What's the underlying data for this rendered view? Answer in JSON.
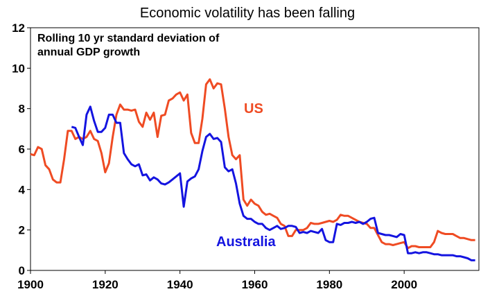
{
  "chart_data": {
    "type": "line",
    "title": "Economic volatility has been falling",
    "subtitle_lines": [
      "Rolling 10 yr standard deviation of",
      "annual GDP growth"
    ],
    "xlim": [
      1900,
      2020
    ],
    "ylim": [
      0,
      12
    ],
    "x_ticks": [
      1900,
      1920,
      1940,
      1960,
      1980,
      2000
    ],
    "y_ticks": [
      0,
      2,
      4,
      6,
      8,
      10,
      12
    ],
    "grid": false,
    "series": [
      {
        "name": "US",
        "color": "#ef4b23",
        "points": [
          [
            1900,
            5.75
          ],
          [
            1901,
            5.7
          ],
          [
            1902,
            6.1
          ],
          [
            1903,
            6.0
          ],
          [
            1904,
            5.2
          ],
          [
            1905,
            5.0
          ],
          [
            1906,
            4.5
          ],
          [
            1907,
            4.35
          ],
          [
            1908,
            4.35
          ],
          [
            1909,
            5.5
          ],
          [
            1910,
            6.9
          ],
          [
            1911,
            6.9
          ],
          [
            1912,
            6.5
          ],
          [
            1913,
            6.6
          ],
          [
            1914,
            6.5
          ],
          [
            1915,
            6.6
          ],
          [
            1916,
            6.9
          ],
          [
            1917,
            6.5
          ],
          [
            1918,
            6.4
          ],
          [
            1919,
            5.8
          ],
          [
            1920,
            4.85
          ],
          [
            1921,
            5.3
          ],
          [
            1922,
            6.6
          ],
          [
            1923,
            7.7
          ],
          [
            1924,
            8.2
          ],
          [
            1925,
            7.95
          ],
          [
            1926,
            7.95
          ],
          [
            1927,
            7.9
          ],
          [
            1928,
            7.95
          ],
          [
            1929,
            7.35
          ],
          [
            1930,
            7.1
          ],
          [
            1931,
            7.8
          ],
          [
            1932,
            7.45
          ],
          [
            1933,
            7.8
          ],
          [
            1934,
            6.6
          ],
          [
            1935,
            7.65
          ],
          [
            1936,
            7.7
          ],
          [
            1937,
            8.4
          ],
          [
            1938,
            8.5
          ],
          [
            1939,
            8.7
          ],
          [
            1940,
            8.8
          ],
          [
            1941,
            8.4
          ],
          [
            1942,
            8.7
          ],
          [
            1943,
            6.8
          ],
          [
            1944,
            6.3
          ],
          [
            1945,
            6.3
          ],
          [
            1946,
            7.5
          ],
          [
            1947,
            9.2
          ],
          [
            1948,
            9.45
          ],
          [
            1949,
            9.0
          ],
          [
            1950,
            9.25
          ],
          [
            1951,
            9.2
          ],
          [
            1952,
            8.0
          ],
          [
            1953,
            6.6
          ],
          [
            1954,
            5.7
          ],
          [
            1955,
            5.5
          ],
          [
            1956,
            5.7
          ],
          [
            1957,
            3.5
          ],
          [
            1958,
            3.2
          ],
          [
            1959,
            3.5
          ],
          [
            1960,
            3.3
          ],
          [
            1961,
            3.2
          ],
          [
            1962,
            2.9
          ],
          [
            1963,
            2.75
          ],
          [
            1964,
            2.8
          ],
          [
            1965,
            2.7
          ],
          [
            1966,
            2.6
          ],
          [
            1967,
            2.3
          ],
          [
            1968,
            2.2
          ],
          [
            1969,
            1.7
          ],
          [
            1970,
            1.7
          ],
          [
            1971,
            2.0
          ],
          [
            1972,
            2.0
          ],
          [
            1973,
            2.0
          ],
          [
            1974,
            2.1
          ],
          [
            1975,
            2.35
          ],
          [
            1976,
            2.3
          ],
          [
            1977,
            2.3
          ],
          [
            1978,
            2.35
          ],
          [
            1979,
            2.4
          ],
          [
            1980,
            2.45
          ],
          [
            1981,
            2.4
          ],
          [
            1982,
            2.5
          ],
          [
            1983,
            2.75
          ],
          [
            1984,
            2.7
          ],
          [
            1985,
            2.7
          ],
          [
            1986,
            2.6
          ],
          [
            1987,
            2.5
          ],
          [
            1988,
            2.4
          ],
          [
            1989,
            2.35
          ],
          [
            1990,
            2.3
          ],
          [
            1991,
            2.1
          ],
          [
            1992,
            2.1
          ],
          [
            1993,
            1.75
          ],
          [
            1994,
            1.4
          ],
          [
            1995,
            1.3
          ],
          [
            1996,
            1.3
          ],
          [
            1997,
            1.25
          ],
          [
            1998,
            1.3
          ],
          [
            1999,
            1.35
          ],
          [
            2000,
            1.4
          ],
          [
            2001,
            1.1
          ],
          [
            2002,
            1.2
          ],
          [
            2003,
            1.2
          ],
          [
            2004,
            1.15
          ],
          [
            2005,
            1.15
          ],
          [
            2006,
            1.15
          ],
          [
            2007,
            1.15
          ],
          [
            2008,
            1.4
          ],
          [
            2009,
            1.95
          ],
          [
            2010,
            1.85
          ],
          [
            2011,
            1.8
          ],
          [
            2012,
            1.8
          ],
          [
            2013,
            1.8
          ],
          [
            2014,
            1.7
          ],
          [
            2015,
            1.6
          ],
          [
            2016,
            1.6
          ],
          [
            2017,
            1.55
          ],
          [
            2018,
            1.5
          ],
          [
            2019,
            1.5
          ]
        ]
      },
      {
        "name": "Australia",
        "color": "#1414e0",
        "points": [
          [
            1911,
            7.1
          ],
          [
            1912,
            7.05
          ],
          [
            1913,
            6.6
          ],
          [
            1914,
            6.2
          ],
          [
            1915,
            7.7
          ],
          [
            1916,
            8.1
          ],
          [
            1917,
            7.4
          ],
          [
            1918,
            6.85
          ],
          [
            1919,
            6.85
          ],
          [
            1920,
            7.05
          ],
          [
            1921,
            7.7
          ],
          [
            1922,
            7.7
          ],
          [
            1923,
            7.3
          ],
          [
            1924,
            7.3
          ],
          [
            1925,
            5.8
          ],
          [
            1926,
            5.5
          ],
          [
            1927,
            5.25
          ],
          [
            1928,
            5.15
          ],
          [
            1929,
            5.25
          ],
          [
            1930,
            4.7
          ],
          [
            1931,
            4.75
          ],
          [
            1932,
            4.45
          ],
          [
            1933,
            4.6
          ],
          [
            1934,
            4.5
          ],
          [
            1935,
            4.3
          ],
          [
            1936,
            4.25
          ],
          [
            1937,
            4.35
          ],
          [
            1938,
            4.5
          ],
          [
            1939,
            4.65
          ],
          [
            1940,
            4.8
          ],
          [
            1941,
            3.15
          ],
          [
            1942,
            4.4
          ],
          [
            1943,
            4.55
          ],
          [
            1944,
            4.65
          ],
          [
            1945,
            5.0
          ],
          [
            1946,
            5.9
          ],
          [
            1947,
            6.6
          ],
          [
            1948,
            6.75
          ],
          [
            1949,
            6.5
          ],
          [
            1950,
            6.55
          ],
          [
            1951,
            6.35
          ],
          [
            1952,
            5.1
          ],
          [
            1953,
            4.9
          ],
          [
            1954,
            5.0
          ],
          [
            1955,
            4.3
          ],
          [
            1956,
            3.3
          ],
          [
            1957,
            2.7
          ],
          [
            1958,
            2.55
          ],
          [
            1959,
            2.55
          ],
          [
            1960,
            2.4
          ],
          [
            1961,
            2.3
          ],
          [
            1962,
            2.3
          ],
          [
            1963,
            2.1
          ],
          [
            1964,
            2.0
          ],
          [
            1965,
            2.1
          ],
          [
            1966,
            2.2
          ],
          [
            1967,
            2.05
          ],
          [
            1968,
            2.1
          ],
          [
            1969,
            2.2
          ],
          [
            1970,
            2.2
          ],
          [
            1971,
            2.15
          ],
          [
            1972,
            1.85
          ],
          [
            1973,
            1.9
          ],
          [
            1974,
            1.85
          ],
          [
            1975,
            1.95
          ],
          [
            1976,
            1.9
          ],
          [
            1977,
            1.85
          ],
          [
            1978,
            2.05
          ],
          [
            1979,
            1.5
          ],
          [
            1980,
            1.4
          ],
          [
            1981,
            1.4
          ],
          [
            1982,
            2.3
          ],
          [
            1983,
            2.25
          ],
          [
            1984,
            2.35
          ],
          [
            1985,
            2.35
          ],
          [
            1986,
            2.4
          ],
          [
            1987,
            2.35
          ],
          [
            1988,
            2.4
          ],
          [
            1989,
            2.3
          ],
          [
            1990,
            2.4
          ],
          [
            1991,
            2.55
          ],
          [
            1992,
            2.6
          ],
          [
            1993,
            1.85
          ],
          [
            1994,
            1.8
          ],
          [
            1995,
            1.75
          ],
          [
            1996,
            1.75
          ],
          [
            1997,
            1.7
          ],
          [
            1998,
            1.65
          ],
          [
            1999,
            1.8
          ],
          [
            2000,
            1.75
          ],
          [
            2001,
            0.85
          ],
          [
            2002,
            0.85
          ],
          [
            2003,
            0.9
          ],
          [
            2004,
            0.85
          ],
          [
            2005,
            0.9
          ],
          [
            2006,
            0.9
          ],
          [
            2007,
            0.85
          ],
          [
            2008,
            0.8
          ],
          [
            2009,
            0.8
          ],
          [
            2010,
            0.75
          ],
          [
            2011,
            0.75
          ],
          [
            2012,
            0.75
          ],
          [
            2013,
            0.75
          ],
          [
            2014,
            0.7
          ],
          [
            2015,
            0.7
          ],
          [
            2016,
            0.65
          ],
          [
            2017,
            0.6
          ],
          [
            2018,
            0.5
          ],
          [
            2019,
            0.5
          ]
        ]
      }
    ]
  }
}
